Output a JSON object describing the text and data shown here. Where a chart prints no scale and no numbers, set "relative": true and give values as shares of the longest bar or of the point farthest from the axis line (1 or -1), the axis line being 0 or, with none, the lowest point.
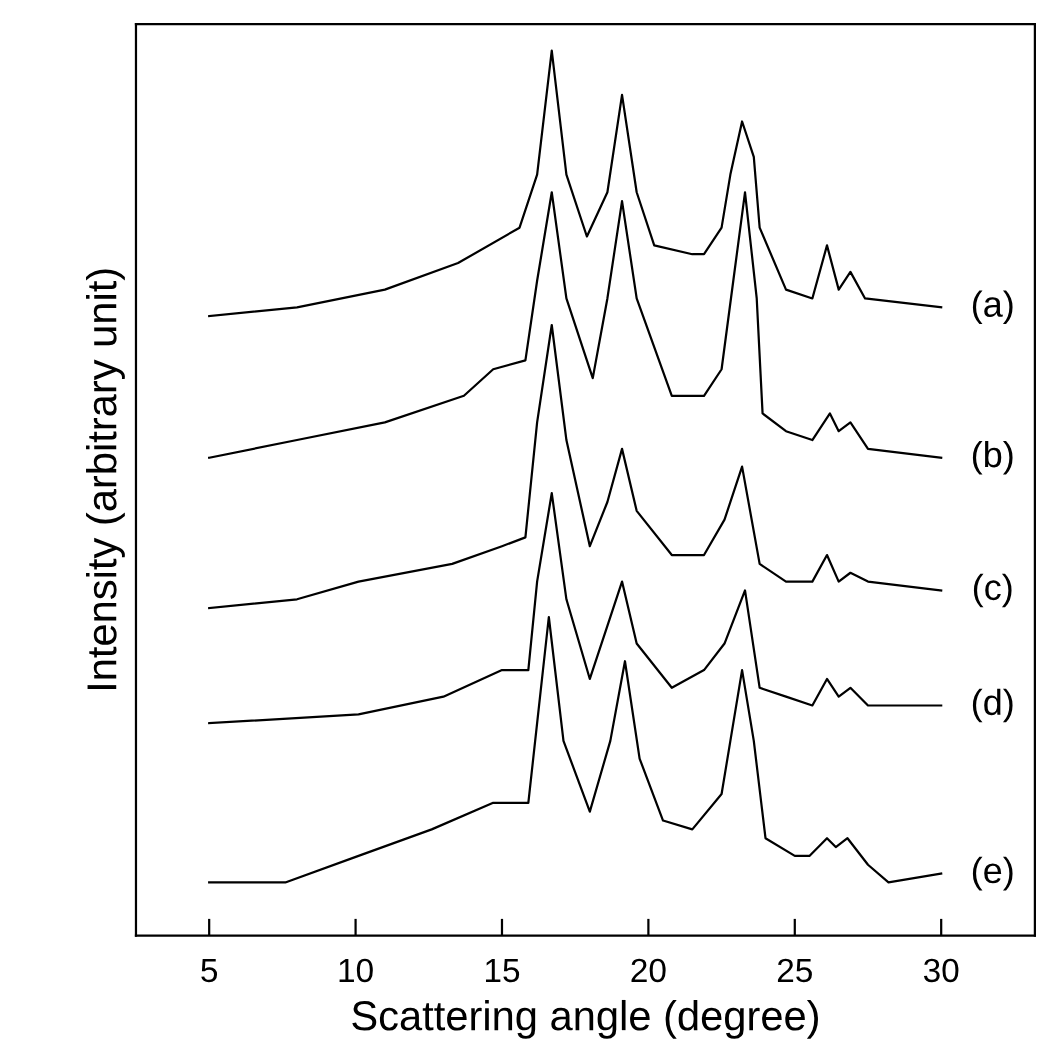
{
  "chart_data": {
    "type": "line",
    "xlabel": "Scattering angle (degree)",
    "ylabel": "Intensity (arbitrary unit)",
    "relative": true,
    "xlim": [
      2.5,
      33.2
    ],
    "xticks": [
      5,
      10,
      15,
      20,
      25,
      30
    ],
    "tick_labels": "x",
    "grid": false,
    "legend": false,
    "marker": "none",
    "line_style": "solid",
    "series": [
      {
        "name": "(a)",
        "color": "#000000",
        "x": [
          5,
          8,
          11,
          13.5,
          15.6,
          16.2,
          16.7,
          17.2,
          17.9,
          18.6,
          19.1,
          19.6,
          20.2,
          21.5,
          21.9,
          22.5,
          22.8,
          23.2,
          23.6,
          23.8,
          24.7,
          25.6,
          26.1,
          26.5,
          26.9,
          27.4,
          30
        ],
        "values": [
          0.7,
          0.71,
          0.73,
          0.76,
          0.8,
          0.86,
          1.0,
          0.86,
          0.79,
          0.84,
          0.95,
          0.84,
          0.78,
          0.77,
          0.77,
          0.8,
          0.86,
          0.92,
          0.88,
          0.8,
          0.73,
          0.72,
          0.78,
          0.73,
          0.75,
          0.72,
          0.71
        ]
      },
      {
        "name": "(b)",
        "color": "#000000",
        "x": [
          5,
          8,
          11,
          13.7,
          14.7,
          15.8,
          16.2,
          16.7,
          17.2,
          18.1,
          18.6,
          19.1,
          19.6,
          20.8,
          21.9,
          22.5,
          22.9,
          23.3,
          23.7,
          23.9,
          24.7,
          25.6,
          26.2,
          26.5,
          26.9,
          27.5,
          30
        ],
        "values": [
          0.54,
          0.56,
          0.58,
          0.61,
          0.64,
          0.65,
          0.74,
          0.84,
          0.72,
          0.63,
          0.72,
          0.83,
          0.72,
          0.61,
          0.61,
          0.64,
          0.74,
          0.84,
          0.72,
          0.59,
          0.57,
          0.56,
          0.59,
          0.57,
          0.58,
          0.55,
          0.54
        ]
      },
      {
        "name": "(c)",
        "color": "#000000",
        "x": [
          5,
          8,
          10.1,
          13.3,
          15,
          15.8,
          16.2,
          16.7,
          17.2,
          18,
          18.6,
          19.1,
          19.6,
          20.8,
          21.9,
          22.6,
          23.2,
          23.8,
          24.7,
          25.6,
          26.1,
          26.5,
          26.9,
          27.5,
          30
        ],
        "values": [
          0.37,
          0.38,
          0.4,
          0.42,
          0.44,
          0.45,
          0.58,
          0.69,
          0.56,
          0.44,
          0.49,
          0.55,
          0.48,
          0.43,
          0.43,
          0.47,
          0.53,
          0.42,
          0.4,
          0.4,
          0.43,
          0.4,
          0.41,
          0.4,
          0.39
        ]
      },
      {
        "name": "(d)",
        "color": "#000000",
        "x": [
          5,
          10.1,
          13,
          15,
          15.9,
          16.2,
          16.7,
          17.2,
          18,
          18.6,
          19.1,
          19.6,
          20.8,
          21.9,
          22.6,
          23.3,
          23.8,
          24.7,
          25.6,
          26.1,
          26.5,
          26.9,
          27.5,
          30
        ],
        "values": [
          0.24,
          0.25,
          0.27,
          0.3,
          0.3,
          0.4,
          0.5,
          0.38,
          0.29,
          0.35,
          0.4,
          0.33,
          0.28,
          0.3,
          0.33,
          0.39,
          0.28,
          0.27,
          0.26,
          0.29,
          0.27,
          0.28,
          0.26,
          0.26
        ]
      },
      {
        "name": "(e)",
        "color": "#000000",
        "x": [
          5,
          7.6,
          10.1,
          12.6,
          14.7,
          15.9,
          16.2,
          16.6,
          17.1,
          18,
          18.7,
          19.2,
          19.7,
          20.5,
          21.5,
          22.5,
          22.8,
          23.2,
          23.6,
          24.0,
          25.0,
          25.5,
          26.1,
          26.4,
          26.8,
          27.5,
          28.2,
          30
        ],
        "values": [
          0.06,
          0.06,
          0.09,
          0.12,
          0.15,
          0.15,
          0.24,
          0.36,
          0.22,
          0.14,
          0.22,
          0.31,
          0.2,
          0.13,
          0.12,
          0.16,
          0.22,
          0.3,
          0.22,
          0.11,
          0.09,
          0.09,
          0.11,
          0.1,
          0.11,
          0.08,
          0.06,
          0.07
        ]
      }
    ]
  }
}
